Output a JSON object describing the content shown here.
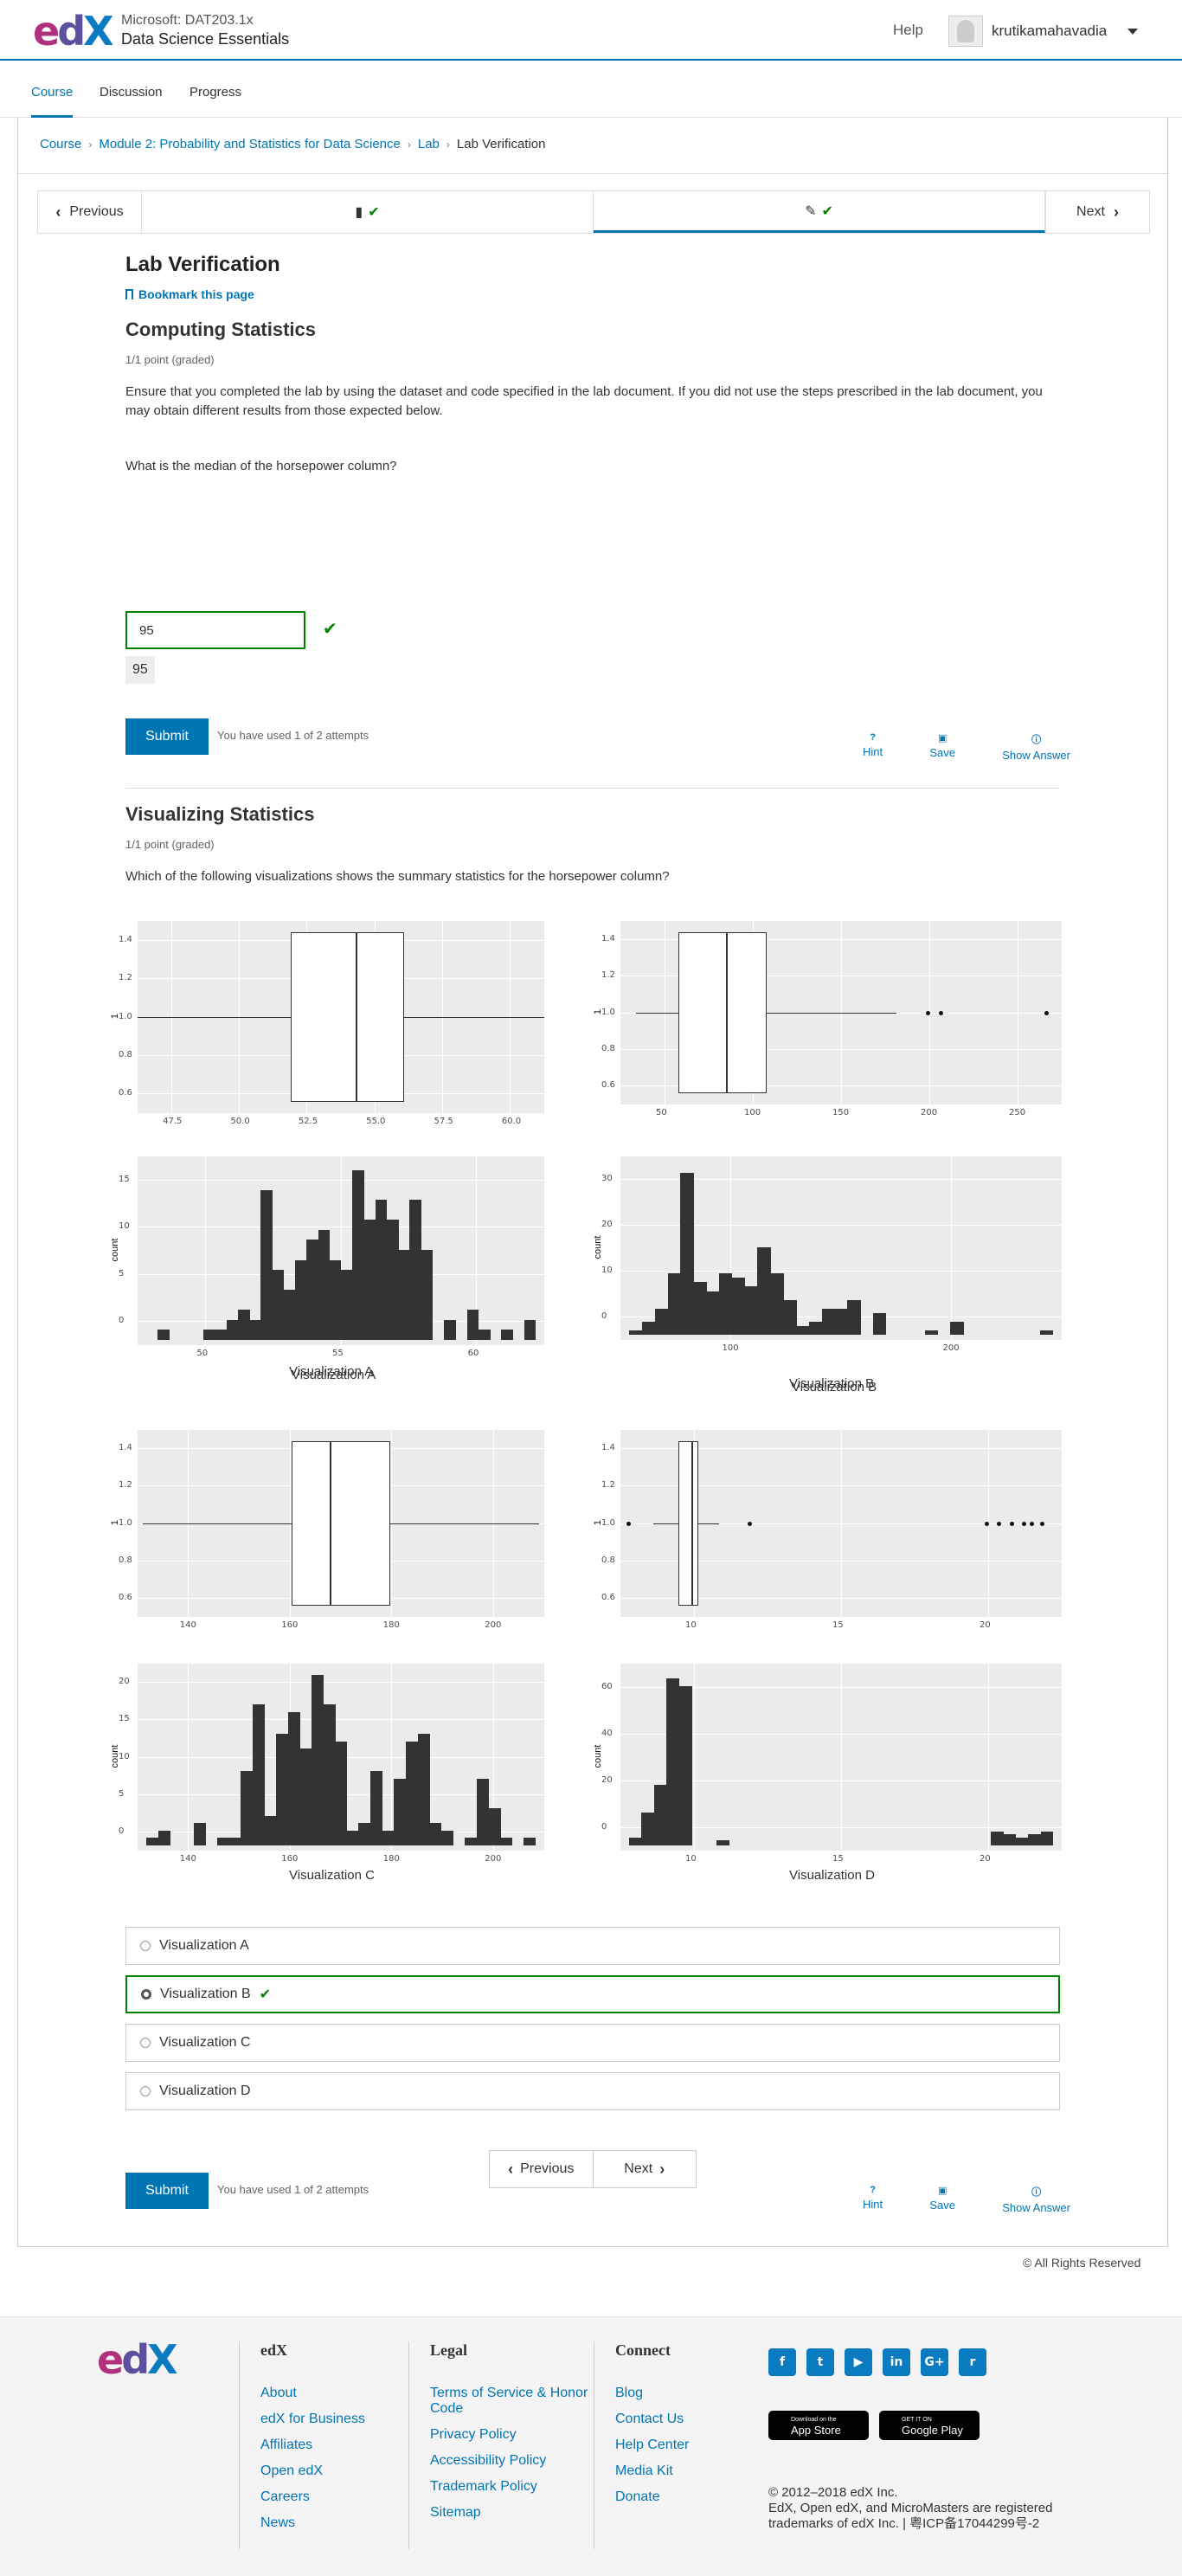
{
  "header": {
    "course_org": "Microsoft: DAT203.1x",
    "course_name": "Data Science Essentials",
    "help": "Help",
    "username": "krutikamahavadia"
  },
  "course_tabs": [
    "Course",
    "Discussion",
    "Progress"
  ],
  "breadcrumb": [
    "Course",
    "Module 2: Probability and Statistics for Data Science",
    "Lab",
    "Lab Verification"
  ],
  "sequence_nav": {
    "previous": "Previous",
    "next": "Next"
  },
  "unit": {
    "title": "Lab Verification",
    "bookmark": "Bookmark this page"
  },
  "problem1": {
    "title": "Computing Statistics",
    "grade": "1/1 point (graded)",
    "instructions": "Ensure that you completed the lab by using the dataset and code specified in the lab document. If you did not use the steps prescribed in the lab document, you may obtain different results from those expected below.",
    "question": "What is the median of the horsepower column?",
    "answer_value": "95",
    "answer_echo": "95",
    "submit": "Submit",
    "attempts": "You have used 1 of 2 attempts"
  },
  "actions": {
    "hint": "Hint",
    "save": "Save",
    "show_answer": "Show Answer"
  },
  "problem2": {
    "title": "Visualizing Statistics",
    "grade": "1/1 point (graded)",
    "question": "Which of the following visualizations shows the summary statistics for the horsepower column?",
    "submit": "Submit",
    "attempts": "You have used 1 of 2 attempts",
    "options": [
      "Visualization A",
      "Visualization B",
      "Visualization C",
      "Visualization D"
    ],
    "selected": "Visualization B"
  },
  "chart_data": [
    {
      "type": "box",
      "name": "Visualization A (box)",
      "ylabel": "1",
      "xlim": [
        47.5,
        60.0
      ],
      "xticks": [
        "47.5",
        "50.0",
        "52.5",
        "55.0",
        "57.5",
        "60.0"
      ],
      "yticks": [
        "1.4",
        "1.2",
        "1.0",
        "0.8",
        "0.6"
      ],
      "min": 47.5,
      "q1": 52.2,
      "median": 54.2,
      "q3": 55.7,
      "max": 60.0
    },
    {
      "type": "box",
      "name": "Visualization B (box)",
      "ylabel": "1",
      "xlim": [
        40,
        270
      ],
      "xticks": [
        "50",
        "100",
        "150",
        "200",
        "250"
      ],
      "yticks": [
        "1.4",
        "1.2",
        "1.0",
        "0.8",
        "0.6"
      ],
      "min": 48,
      "q1": 70,
      "median": 95,
      "q3": 116,
      "max": 184,
      "outliers": [
        200,
        207,
        262
      ]
    },
    {
      "type": "bar",
      "name": "Visualization A (histogram)",
      "label": "Visualization A",
      "ylabel": "count",
      "xticks": [
        "50",
        "55",
        "60"
      ],
      "yticks": [
        "15",
        "10",
        "5",
        "0"
      ],
      "ylim": [
        0,
        18
      ],
      "bins_from": 47.0,
      "bin_width": 0.5,
      "values": [
        0,
        1,
        0,
        0,
        0,
        1,
        1,
        2,
        3,
        2,
        15,
        7,
        5,
        8,
        10,
        11,
        8,
        7,
        17,
        12,
        14,
        12,
        9,
        14,
        9,
        0,
        2,
        0,
        3,
        1,
        0,
        1,
        0,
        2
      ]
    },
    {
      "type": "bar",
      "name": "Visualization B (histogram)",
      "label": "Visualization B",
      "ylabel": "count",
      "xticks": [
        "100",
        "200"
      ],
      "yticks": [
        "30",
        "20",
        "10",
        "0"
      ],
      "ylim": [
        0,
        40
      ],
      "bins_from": 45,
      "bin_width": 6.5,
      "values": [
        1,
        3,
        6,
        14,
        37,
        12,
        10,
        14,
        13,
        11,
        20,
        14,
        8,
        2,
        3,
        6,
        6,
        8,
        0,
        5,
        0,
        0,
        0,
        1,
        0,
        3,
        0,
        0,
        0,
        0,
        0,
        0,
        1
      ]
    },
    {
      "type": "box",
      "name": "Visualization C (box)",
      "ylabel": "1",
      "xlim": [
        138,
        212
      ],
      "xticks": [
        "140",
        "160",
        "180",
        "200"
      ],
      "yticks": [
        "1.4",
        "1.2",
        "1.0",
        "0.8",
        "0.6"
      ],
      "min": 139,
      "q1": 166,
      "median": 173,
      "q3": 184,
      "max": 211
    },
    {
      "type": "box",
      "name": "Visualization D (box)",
      "ylabel": "1",
      "xlim": [
        6.5,
        24
      ],
      "xticks": [
        "10",
        "15",
        "20"
      ],
      "yticks": [
        "1.4",
        "1.2",
        "1.0",
        "0.8",
        "0.6"
      ],
      "min": 7.8,
      "q1": 8.8,
      "median": 9.3,
      "q3": 9.6,
      "max": 10.4,
      "outliers": [
        6.8,
        11.6,
        21.0,
        21.5,
        22.0,
        22.5,
        22.8,
        23.2
      ]
    },
    {
      "type": "bar",
      "name": "Visualization C (histogram)",
      "label": "Visualization C",
      "ylabel": "count",
      "xticks": [
        "140",
        "160",
        "180",
        "200"
      ],
      "yticks": [
        "20",
        "15",
        "10",
        "5",
        "0"
      ],
      "ylim": [
        0,
        24
      ],
      "bins_from": 140,
      "bin_width": 2,
      "values": [
        1,
        2,
        0,
        0,
        3,
        0,
        1,
        1,
        10,
        19,
        4,
        15,
        18,
        13,
        23,
        19,
        14,
        2,
        3,
        10,
        2,
        9,
        14,
        15,
        3,
        2,
        0,
        1,
        9,
        5,
        1,
        0,
        1
      ]
    },
    {
      "type": "bar",
      "name": "Visualization D (histogram)",
      "label": "Visualization D",
      "ylabel": "count",
      "xticks": [
        "10",
        "15",
        "20"
      ],
      "yticks": [
        "60",
        "40",
        "20",
        "0"
      ],
      "ylim": [
        0,
        65
      ],
      "bins_from": 7.1,
      "bin_width": 0.5,
      "values": [
        3,
        12,
        22,
        61,
        58,
        0,
        0,
        2,
        0,
        0,
        0,
        0,
        0,
        0,
        0,
        0,
        0,
        0,
        0,
        0,
        0,
        0,
        0,
        0,
        0,
        0,
        0,
        0,
        0,
        5,
        4,
        3,
        4,
        5
      ]
    }
  ],
  "bottom_nav": {
    "previous": "Previous",
    "next": "Next"
  },
  "rights": "© All Rights Reserved",
  "footer": {
    "edx": {
      "heading": "edX",
      "links": [
        "About",
        "edX for Business",
        "Affiliates",
        "Open edX",
        "Careers",
        "News"
      ]
    },
    "legal": {
      "heading": "Legal",
      "links": [
        "Terms of Service & Honor Code",
        "Privacy Policy",
        "Accessibility Policy",
        "Trademark Policy",
        "Sitemap"
      ]
    },
    "connect": {
      "heading": "Connect",
      "links": [
        "Blog",
        "Contact Us",
        "Help Center",
        "Media Kit",
        "Donate"
      ]
    },
    "social": [
      "f",
      "t",
      "▶",
      "in",
      "G+",
      "r"
    ],
    "app_store": {
      "small": "Download on the",
      "big": "App Store"
    },
    "google_play": {
      "small": "GET IT ON",
      "big": "Google Play"
    },
    "copyright": "© 2012–2018 edX Inc.",
    "trademarks": "EdX, Open edX, and MicroMasters are registered trademarks of edX Inc. | 粤ICP备17044299号-2"
  },
  "colors": {
    "accent": "#0075b4",
    "correct": "#008100",
    "plot_bg": "#ebebeb",
    "bar": "#333333"
  }
}
